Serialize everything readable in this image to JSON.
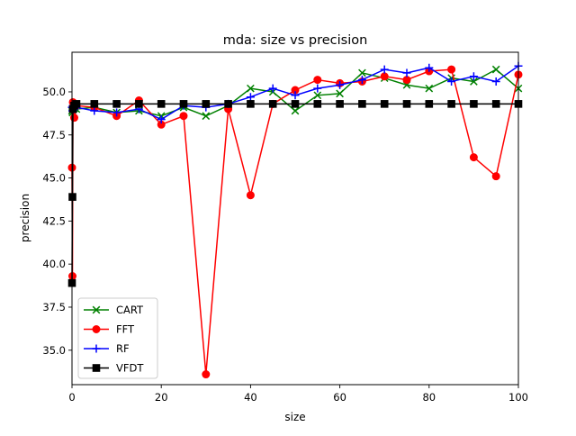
{
  "chart_data": {
    "type": "line",
    "title": "mda: size vs precision",
    "xlabel": "size",
    "ylabel": "precision",
    "xlim": [
      0,
      100
    ],
    "ylim": [
      33.0,
      52.3
    ],
    "xticks": [
      0,
      20,
      40,
      60,
      80,
      100
    ],
    "xtick_labels": [
      "0",
      "20",
      "40",
      "60",
      "80",
      "100"
    ],
    "yticks": [
      35.0,
      37.5,
      40.0,
      42.5,
      45.0,
      47.5,
      50.0
    ],
    "ytick_labels": [
      "35.0",
      "37.5",
      "40.0",
      "42.5",
      "45.0",
      "47.5",
      "50.0"
    ],
    "grid": false,
    "legend_position": "lower-left",
    "series": [
      {
        "name": "CART",
        "color": "#008000",
        "marker": "x",
        "points": [
          [
            0,
            48.9
          ],
          [
            0.1,
            48.8
          ],
          [
            0.2,
            49.0
          ],
          [
            0.5,
            48.7
          ],
          [
            1,
            49.0
          ],
          [
            5,
            49.1
          ],
          [
            10,
            48.8
          ],
          [
            15,
            48.9
          ],
          [
            20,
            48.6
          ],
          [
            25,
            49.1
          ],
          [
            30,
            48.6
          ],
          [
            35,
            49.2
          ],
          [
            40,
            50.2
          ],
          [
            45,
            50.0
          ],
          [
            50,
            48.9
          ],
          [
            55,
            49.8
          ],
          [
            60,
            49.9
          ],
          [
            65,
            51.1
          ],
          [
            70,
            50.8
          ],
          [
            75,
            50.4
          ],
          [
            80,
            50.2
          ],
          [
            85,
            50.8
          ],
          [
            90,
            50.6
          ],
          [
            95,
            51.3
          ],
          [
            100,
            50.2
          ]
        ]
      },
      {
        "name": "FFT",
        "color": "#ff0000",
        "marker": "o",
        "points": [
          [
            0,
            45.6
          ],
          [
            0.1,
            39.3
          ],
          [
            0.2,
            49.4
          ],
          [
            0.5,
            48.5
          ],
          [
            1,
            49.2
          ],
          [
            5,
            49.1
          ],
          [
            10,
            48.6
          ],
          [
            15,
            49.5
          ],
          [
            20,
            48.1
          ],
          [
            25,
            48.6
          ],
          [
            30,
            33.6
          ],
          [
            35,
            49.0
          ],
          [
            40,
            44.0
          ],
          [
            45,
            49.3
          ],
          [
            50,
            50.1
          ],
          [
            55,
            50.7
          ],
          [
            60,
            50.5
          ],
          [
            65,
            50.6
          ],
          [
            70,
            50.9
          ],
          [
            75,
            50.7
          ],
          [
            80,
            51.2
          ],
          [
            85,
            51.3
          ],
          [
            90,
            46.2
          ],
          [
            95,
            45.1
          ],
          [
            100,
            51.0
          ]
        ]
      },
      {
        "name": "RF",
        "color": "#0000ff",
        "marker": "+",
        "points": [
          [
            0,
            49.1
          ],
          [
            0.1,
            48.9
          ],
          [
            0.2,
            49.2
          ],
          [
            0.5,
            49.0
          ],
          [
            1,
            49.1
          ],
          [
            5,
            48.9
          ],
          [
            10,
            48.8
          ],
          [
            15,
            49.0
          ],
          [
            20,
            48.4
          ],
          [
            25,
            49.2
          ],
          [
            30,
            49.1
          ],
          [
            35,
            49.3
          ],
          [
            40,
            49.7
          ],
          [
            45,
            50.2
          ],
          [
            50,
            49.8
          ],
          [
            55,
            50.2
          ],
          [
            60,
            50.4
          ],
          [
            65,
            50.7
          ],
          [
            70,
            51.3
          ],
          [
            75,
            51.1
          ],
          [
            80,
            51.4
          ],
          [
            85,
            50.6
          ],
          [
            90,
            50.9
          ],
          [
            95,
            50.6
          ],
          [
            100,
            51.5
          ]
        ]
      },
      {
        "name": "VFDT",
        "color": "#000000",
        "marker": "s",
        "points": [
          [
            0,
            38.9
          ],
          [
            0.1,
            43.9
          ],
          [
            0.2,
            49.0
          ],
          [
            0.5,
            49.2
          ],
          [
            1,
            49.3
          ],
          [
            5,
            49.3
          ],
          [
            10,
            49.3
          ],
          [
            15,
            49.3
          ],
          [
            20,
            49.3
          ],
          [
            25,
            49.3
          ],
          [
            30,
            49.3
          ],
          [
            35,
            49.3
          ],
          [
            40,
            49.3
          ],
          [
            45,
            49.3
          ],
          [
            50,
            49.3
          ],
          [
            55,
            49.3
          ],
          [
            60,
            49.3
          ],
          [
            65,
            49.3
          ],
          [
            70,
            49.3
          ],
          [
            75,
            49.3
          ],
          [
            80,
            49.3
          ],
          [
            85,
            49.3
          ],
          [
            90,
            49.3
          ],
          [
            95,
            49.3
          ],
          [
            100,
            49.3
          ]
        ]
      }
    ]
  }
}
